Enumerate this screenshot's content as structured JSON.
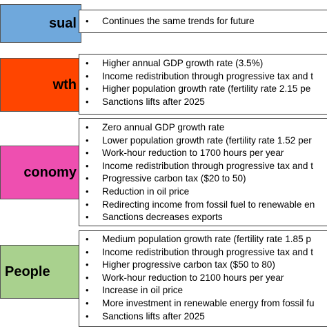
{
  "scenarios": [
    {
      "label": "sual",
      "color": "#6fa8dc",
      "bullets": [
        "Continues the same trends for future"
      ]
    },
    {
      "label": "wth",
      "color": "#ff4500",
      "bullets": [
        "Higher annual GDP growth rate (3.5%)",
        "Income redistribution through progressive tax and t",
        "Higher population growth rate (fertility rate 2.15 pe",
        "Sanctions lifts after 2025"
      ]
    },
    {
      "label": "conomy",
      "color": "#ee4fb0",
      "bullets": [
        "Zero annual GDP growth rate",
        "Lower population growth rate (fertility rate 1.52 per",
        "Work-hour reduction to 1700 hours per year",
        "Income redistribution through progressive tax and t",
        "Progressive carbon tax ($20 to 50)",
        "Reduction in oil price",
        "Redirecting income from fossil fuel to renewable en",
        "Sanctions decreases exports"
      ]
    },
    {
      "label": "People",
      "color": "#a9d18e",
      "bullets": [
        "Medium population growth rate (fertility rate 1.85 p",
        "Income redistribution through progressive tax and t",
        "Higher progressive carbon tax ($50 to 80)",
        "Work-hour reduction to 2100 hours per year",
        "Increase in oil price",
        "More investment in renewable energy from fossil fu",
        "Sanctions lifts after 2025"
      ]
    }
  ]
}
